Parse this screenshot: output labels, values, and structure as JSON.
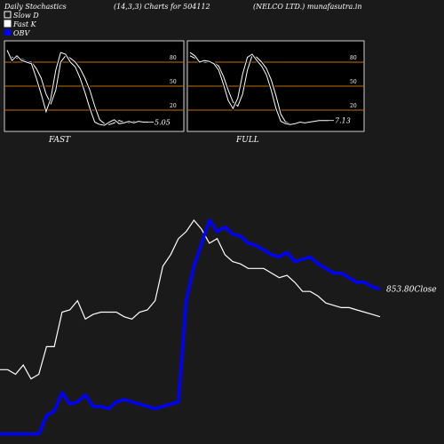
{
  "header": {
    "title": "Daily Stochastics",
    "params": "(14,3,3) Charts for 504112",
    "company": "(NELCO LTD.) munafasutra.in"
  },
  "legend": [
    {
      "label": "Slow  D",
      "color": "#ffffff"
    },
    {
      "label": "Fast K",
      "color": "#ffffff"
    },
    {
      "label": "OBV",
      "color": "#0000ff"
    }
  ],
  "colors": {
    "background": "#1a1a1a",
    "panel": "#000000",
    "refline": "#c07000",
    "obv": "#0000ff",
    "price": "#ffffff"
  },
  "chart_data": [
    {
      "type": "line",
      "panel": "FAST",
      "label": "FAST",
      "ylim": [
        0,
        100
      ],
      "ticks": [
        80,
        50,
        20
      ],
      "ref_lines": [
        80,
        50,
        20
      ],
      "last_value_label": "5.05",
      "series": [
        {
          "name": "Slow  D",
          "values": [
            92,
            86,
            85,
            84,
            81,
            80,
            72,
            60,
            40,
            28,
            45,
            80,
            88,
            85,
            80,
            72,
            60,
            45,
            25,
            8,
            3,
            2,
            4,
            7,
            5,
            4,
            6,
            5,
            5,
            4
          ]
        },
        {
          "name": "Fast K",
          "values": [
            95,
            82,
            88,
            82,
            80,
            78,
            60,
            40,
            18,
            35,
            70,
            92,
            90,
            80,
            74,
            60,
            42,
            22,
            5,
            2,
            1,
            5,
            8,
            3,
            4,
            6,
            4,
            6,
            5,
            5
          ]
        }
      ]
    },
    {
      "type": "line",
      "panel": "FULL",
      "label": "FULL",
      "ylim": [
        0,
        100
      ],
      "ticks": [
        80,
        50,
        20
      ],
      "ref_lines": [
        80,
        50,
        20
      ],
      "last_value_label": "7.13",
      "series": [
        {
          "name": "Slow  D",
          "values": [
            88,
            85,
            82,
            80,
            80,
            79,
            75,
            62,
            45,
            30,
            25,
            40,
            70,
            88,
            86,
            80,
            72,
            58,
            38,
            15,
            5,
            3,
            2,
            4,
            5,
            4,
            5,
            6,
            7,
            7
          ]
        },
        {
          "name": "Fast K",
          "values": [
            92,
            88,
            80,
            82,
            81,
            78,
            70,
            52,
            32,
            22,
            35,
            65,
            86,
            90,
            82,
            75,
            64,
            45,
            22,
            6,
            3,
            2,
            3,
            5,
            4,
            5,
            6,
            7,
            7,
            7
          ]
        }
      ]
    },
    {
      "type": "line",
      "panel": "OBV",
      "last_value_label": "853.80Close",
      "series": [
        {
          "name": "OBV",
          "values": [
            2,
            2,
            2,
            2,
            2,
            2,
            10,
            12,
            20,
            15,
            16,
            19,
            14,
            14,
            13,
            16,
            17,
            16,
            15,
            14,
            13,
            14,
            15,
            16,
            60,
            75,
            85,
            95,
            90,
            92,
            89,
            88,
            85,
            84,
            82,
            80,
            79,
            81,
            77,
            78,
            79,
            76,
            74,
            72,
            72,
            70,
            68,
            68,
            66,
            65
          ]
        },
        {
          "name": "Price",
          "values": [
            30,
            30,
            28,
            32,
            26,
            28,
            40,
            40,
            55,
            56,
            60,
            52,
            54,
            55,
            55,
            55,
            53,
            52,
            55,
            56,
            60,
            75,
            80,
            87,
            90,
            95,
            91,
            85,
            87,
            80,
            77,
            76,
            74,
            74,
            74,
            72,
            70,
            71,
            68,
            64,
            64,
            62,
            59,
            58,
            57,
            57,
            56,
            55,
            54,
            53
          ]
        }
      ]
    }
  ]
}
